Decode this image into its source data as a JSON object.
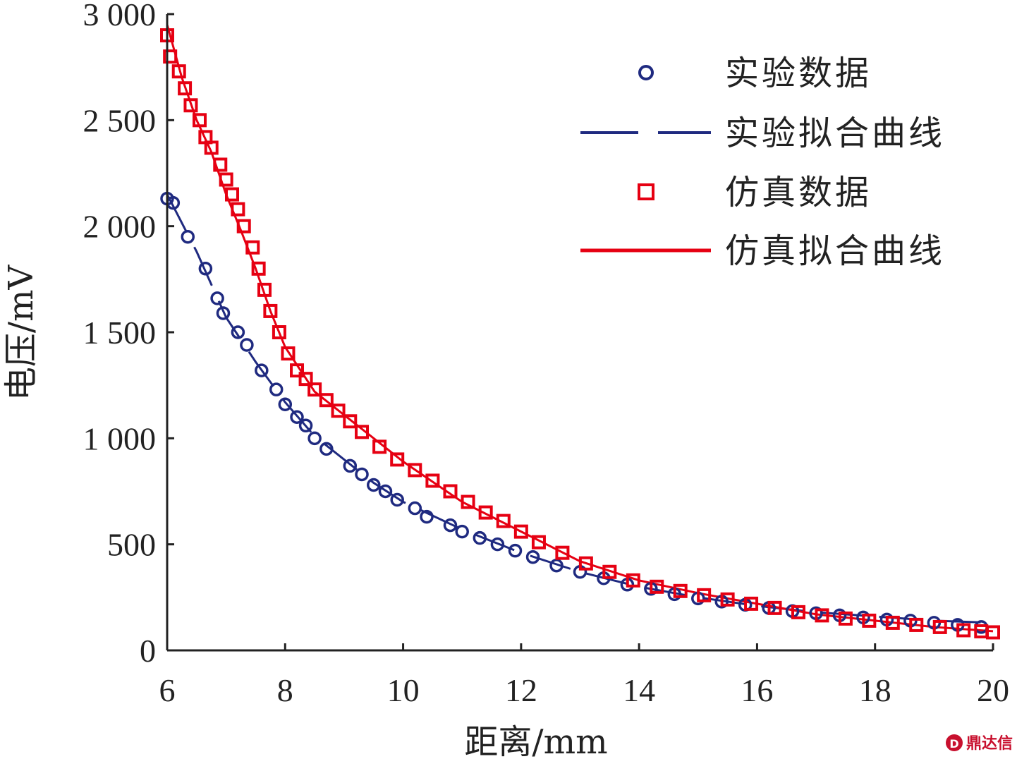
{
  "chart_data": {
    "type": "scatter",
    "title": "",
    "xlabel": "距离/mm",
    "ylabel": "电压/mV",
    "xlim": [
      6,
      20
    ],
    "ylim": [
      0,
      3000
    ],
    "x_ticks": [
      6,
      8,
      10,
      12,
      14,
      16,
      18,
      20
    ],
    "x_tick_labels": [
      "6",
      "8",
      "10",
      "12",
      "14",
      "16",
      "18",
      "20"
    ],
    "y_ticks": [
      0,
      500,
      1000,
      1500,
      2000,
      2500,
      3000
    ],
    "y_tick_labels": [
      "0",
      "500",
      "1 000",
      "1 500",
      "2 000",
      "2 500",
      "3 000"
    ],
    "grid": false,
    "legend_position": "top-right",
    "series": [
      {
        "name": "实验数据",
        "kind": "scatter",
        "marker": "circle",
        "color": "#1f2a80",
        "x": [
          6.0,
          6.1,
          6.35,
          6.65,
          6.85,
          6.95,
          7.2,
          7.35,
          7.6,
          7.85,
          8.0,
          8.2,
          8.35,
          8.5,
          8.7,
          9.1,
          9.3,
          9.5,
          9.7,
          9.9,
          10.2,
          10.4,
          10.8,
          11.0,
          11.3,
          11.6,
          11.9,
          12.2,
          12.6,
          13.0,
          13.4,
          13.8,
          14.2,
          14.6,
          15.0,
          15.4,
          15.8,
          16.2,
          16.6,
          17.0,
          17.4,
          17.8,
          18.2,
          18.6,
          19.0,
          19.4,
          19.8
        ],
        "y": [
          2130,
          2110,
          1950,
          1800,
          1660,
          1590,
          1500,
          1440,
          1320,
          1230,
          1160,
          1100,
          1060,
          1000,
          950,
          870,
          830,
          780,
          750,
          710,
          670,
          630,
          590,
          560,
          530,
          500,
          470,
          440,
          400,
          370,
          340,
          310,
          290,
          265,
          245,
          230,
          215,
          200,
          185,
          175,
          165,
          155,
          145,
          140,
          130,
          120,
          110
        ]
      },
      {
        "name": "实验拟合曲线",
        "kind": "line",
        "dash": "long",
        "color": "#1f2a80",
        "x": [
          6.0,
          6.5,
          7.0,
          7.5,
          8.0,
          8.5,
          9.0,
          9.5,
          10.0,
          11.0,
          12.0,
          13.0,
          14.0,
          15.0,
          16.0,
          17.0,
          18.0,
          19.0,
          20.0
        ],
        "y": [
          2150,
          1880,
          1570,
          1360,
          1170,
          1010,
          900,
          790,
          700,
          570,
          460,
          370,
          300,
          250,
          210,
          180,
          160,
          140,
          130
        ]
      },
      {
        "name": "仿真数据",
        "kind": "scatter",
        "marker": "square",
        "color": "#e60012",
        "x": [
          6.0,
          6.05,
          6.2,
          6.3,
          6.4,
          6.55,
          6.65,
          6.75,
          6.9,
          7.0,
          7.1,
          7.2,
          7.3,
          7.45,
          7.55,
          7.65,
          7.75,
          7.9,
          8.05,
          8.2,
          8.35,
          8.5,
          8.7,
          8.9,
          9.1,
          9.3,
          9.6,
          9.9,
          10.2,
          10.5,
          10.8,
          11.1,
          11.4,
          11.7,
          12.0,
          12.3,
          12.7,
          13.1,
          13.5,
          13.9,
          14.3,
          14.7,
          15.1,
          15.5,
          15.9,
          16.3,
          16.7,
          17.1,
          17.5,
          17.9,
          18.3,
          18.7,
          19.1,
          19.5,
          19.8,
          20.0
        ],
        "y": [
          2900,
          2800,
          2730,
          2650,
          2570,
          2500,
          2420,
          2370,
          2290,
          2220,
          2150,
          2080,
          2000,
          1900,
          1800,
          1700,
          1600,
          1500,
          1400,
          1320,
          1280,
          1230,
          1180,
          1130,
          1080,
          1030,
          960,
          900,
          850,
          800,
          750,
          700,
          650,
          610,
          560,
          510,
          460,
          410,
          370,
          330,
          300,
          280,
          260,
          240,
          220,
          200,
          180,
          165,
          150,
          140,
          130,
          120,
          110,
          95,
          90,
          85
        ]
      },
      {
        "name": "仿真拟合曲线",
        "kind": "line",
        "dash": "solid",
        "color": "#e60012",
        "x": [
          6.0,
          6.25,
          6.5,
          6.75,
          7.0,
          7.25,
          7.5,
          7.75,
          8.0,
          8.5,
          9.0,
          9.5,
          10.0,
          11.0,
          12.0,
          13.0,
          14.0,
          15.0,
          16.0,
          17.0,
          18.0,
          19.0,
          20.0
        ],
        "y": [
          2950,
          2700,
          2500,
          2350,
          2150,
          1980,
          1800,
          1600,
          1430,
          1220,
          1110,
          1000,
          890,
          700,
          560,
          420,
          330,
          270,
          220,
          170,
          140,
          110,
          90
        ]
      }
    ]
  },
  "legend": {
    "items": [
      {
        "label": "实验数据",
        "kind": "circle",
        "color": "#1f2a80"
      },
      {
        "label": "实验拟合曲线",
        "kind": "dash",
        "color": "#1f2a80"
      },
      {
        "label": "仿真数据",
        "kind": "square",
        "color": "#e60012"
      },
      {
        "label": "仿真拟合曲线",
        "kind": "line",
        "color": "#e60012"
      }
    ]
  },
  "watermark": {
    "text": "鼎达信",
    "color": "#c8102e"
  }
}
